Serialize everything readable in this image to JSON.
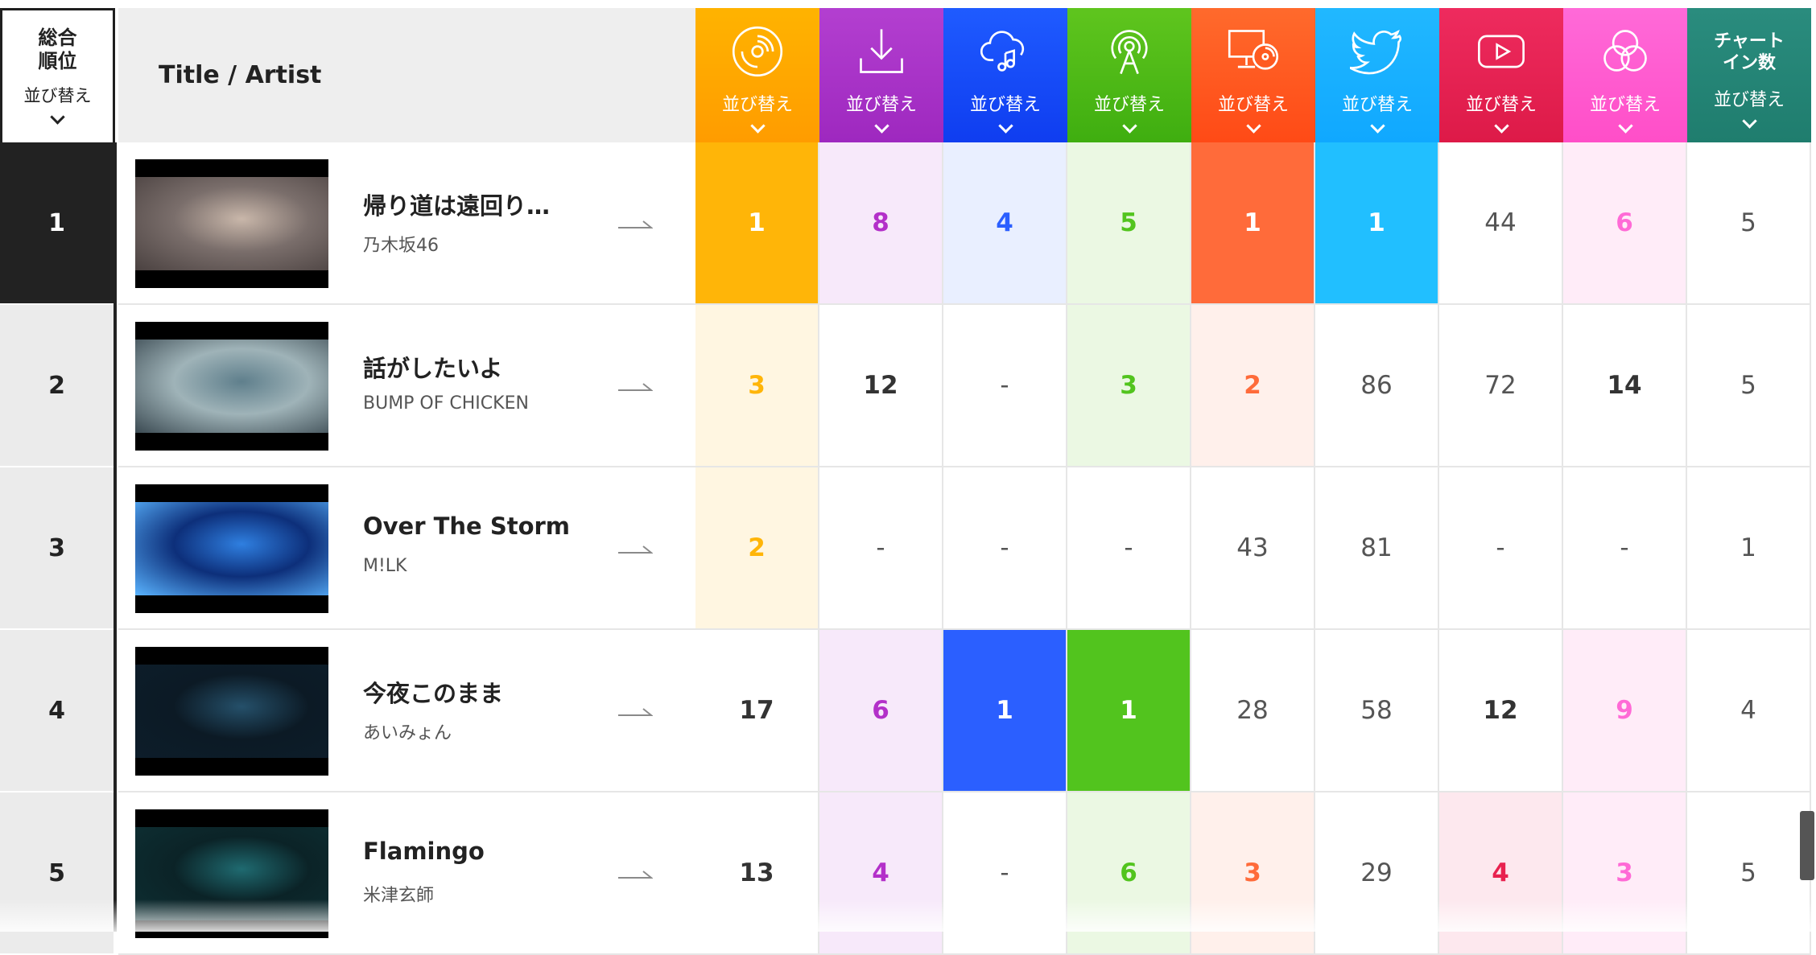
{
  "header": {
    "rank_title_line1": "総合",
    "rank_title_line2": "順位",
    "rank_sort": "並び替え",
    "title_artist": "Title / Artist"
  },
  "columns": [
    {
      "key": "cd",
      "icon": "cd-disc-icon",
      "sort": "並び替え",
      "top": "#ffb300",
      "bottom": "#ff9c00",
      "strong": "#ffb508",
      "light": "#fff6e1",
      "text": "#ffb508"
    },
    {
      "key": "download",
      "icon": "download-icon",
      "sort": "並び替え",
      "top": "#b33fd0",
      "bottom": "#9e28bf",
      "strong": "#b33fd0",
      "light": "#f7e9fa",
      "text": "#b330c9"
    },
    {
      "key": "streaming",
      "icon": "cloud-music-icon",
      "sort": "並び替え",
      "top": "#1f5bff",
      "bottom": "#0f3df0",
      "strong": "#2b5fff",
      "light": "#e9efff",
      "text": "#2b5fff"
    },
    {
      "key": "radio",
      "icon": "radio-broadcast-icon",
      "sort": "並び替え",
      "top": "#5fc51e",
      "bottom": "#3fae10",
      "strong": "#52c41e",
      "light": "#ebf8e3",
      "text": "#52c41e"
    },
    {
      "key": "pc-lookup",
      "icon": "pc-disc-icon",
      "sort": "並び替え",
      "top": "#ff6a2c",
      "bottom": "#ff4a16",
      "strong": "#ff6b3a",
      "light": "#fff0eb",
      "text": "#ff6b3a"
    },
    {
      "key": "twitter",
      "icon": "twitter-bird-icon",
      "sort": "並び替え",
      "top": "#21b8ff",
      "bottom": "#10a8ff",
      "strong": "#21bfff",
      "light": "#e6f7ff",
      "text": "#21bfff"
    },
    {
      "key": "youtube",
      "icon": "youtube-play-icon",
      "sort": "並び替え",
      "top": "#ee2b5e",
      "bottom": "#dd1a48",
      "strong": "#ef2d5e",
      "light": "#fde8ee",
      "text": "#e8224f"
    },
    {
      "key": "gyao",
      "icon": "circles-icon",
      "sort": "並び替え",
      "top": "#ff6ad8",
      "bottom": "#ff4ec8",
      "strong": "#ff6ad6",
      "light": "#ffecf8",
      "text": "#ff6ad6"
    },
    {
      "key": "chart-in",
      "icon": "",
      "title_line1": "チャート",
      "title_line2": "イン数",
      "sort": "並び替え",
      "top": "#2a8c7e",
      "bottom": "#1f7d6e",
      "strong": "#2a8c7e",
      "light": "#e8f4f2",
      "text": "#333333"
    }
  ],
  "rows": [
    {
      "rank": "1",
      "title": "帰り道は遠回り…",
      "artist": "乃木坂46",
      "thumb_colors": [
        "#7a6e6b",
        "#c9b7aa",
        "#4a4140"
      ],
      "cells": [
        {
          "v": "1",
          "s": "strong"
        },
        {
          "v": "8",
          "s": "light"
        },
        {
          "v": "4",
          "s": "light"
        },
        {
          "v": "5",
          "s": "light"
        },
        {
          "v": "1",
          "s": "strong"
        },
        {
          "v": "1",
          "s": "strong"
        },
        {
          "v": "44",
          "s": "plain"
        },
        {
          "v": "6",
          "s": "light"
        },
        {
          "v": "5",
          "s": "plain"
        }
      ]
    },
    {
      "rank": "2",
      "title": "話がしたいよ",
      "artist": "BUMP OF CHICKEN",
      "thumb_colors": [
        "#9fb3b8",
        "#5f7f8c",
        "#3b4a52"
      ],
      "cells": [
        {
          "v": "3",
          "s": "light"
        },
        {
          "v": "12",
          "s": "bold"
        },
        {
          "v": "-",
          "s": "plain"
        },
        {
          "v": "3",
          "s": "light"
        },
        {
          "v": "2",
          "s": "light"
        },
        {
          "v": "86",
          "s": "plain"
        },
        {
          "v": "72",
          "s": "plain"
        },
        {
          "v": "14",
          "s": "bold"
        },
        {
          "v": "5",
          "s": "plain"
        }
      ]
    },
    {
      "rank": "3",
      "title": "Over The Storm",
      "artist": "M!LK",
      "thumb_colors": [
        "#0d2f7a",
        "#2f7fe0",
        "#5ab4ff"
      ],
      "cells": [
        {
          "v": "2",
          "s": "light"
        },
        {
          "v": "-",
          "s": "plain"
        },
        {
          "v": "-",
          "s": "plain"
        },
        {
          "v": "-",
          "s": "plain"
        },
        {
          "v": "43",
          "s": "plain"
        },
        {
          "v": "81",
          "s": "plain"
        },
        {
          "v": "-",
          "s": "plain"
        },
        {
          "v": "-",
          "s": "plain"
        },
        {
          "v": "1",
          "s": "plain"
        }
      ]
    },
    {
      "rank": "4",
      "title": "今夜このまま",
      "artist": "あいみょん",
      "thumb_colors": [
        "#0c1a25",
        "#25506a",
        "#0d1d2a"
      ],
      "cells": [
        {
          "v": "17",
          "s": "bold"
        },
        {
          "v": "6",
          "s": "light"
        },
        {
          "v": "1",
          "s": "strong"
        },
        {
          "v": "1",
          "s": "strong"
        },
        {
          "v": "28",
          "s": "plain"
        },
        {
          "v": "58",
          "s": "plain"
        },
        {
          "v": "12",
          "s": "bold"
        },
        {
          "v": "9",
          "s": "light"
        },
        {
          "v": "4",
          "s": "plain"
        }
      ]
    },
    {
      "rank": "5",
      "title": "Flamingo",
      "artist": "米津玄師",
      "thumb_colors": [
        "#0b2327",
        "#1f6a70",
        "#0e2f33"
      ],
      "cells": [
        {
          "v": "13",
          "s": "bold"
        },
        {
          "v": "4",
          "s": "light"
        },
        {
          "v": "-",
          "s": "plain"
        },
        {
          "v": "6",
          "s": "light"
        },
        {
          "v": "3",
          "s": "light"
        },
        {
          "v": "29",
          "s": "plain"
        },
        {
          "v": "4",
          "s": "light"
        },
        {
          "v": "3",
          "s": "light"
        },
        {
          "v": "5",
          "s": "plain"
        }
      ]
    }
  ]
}
